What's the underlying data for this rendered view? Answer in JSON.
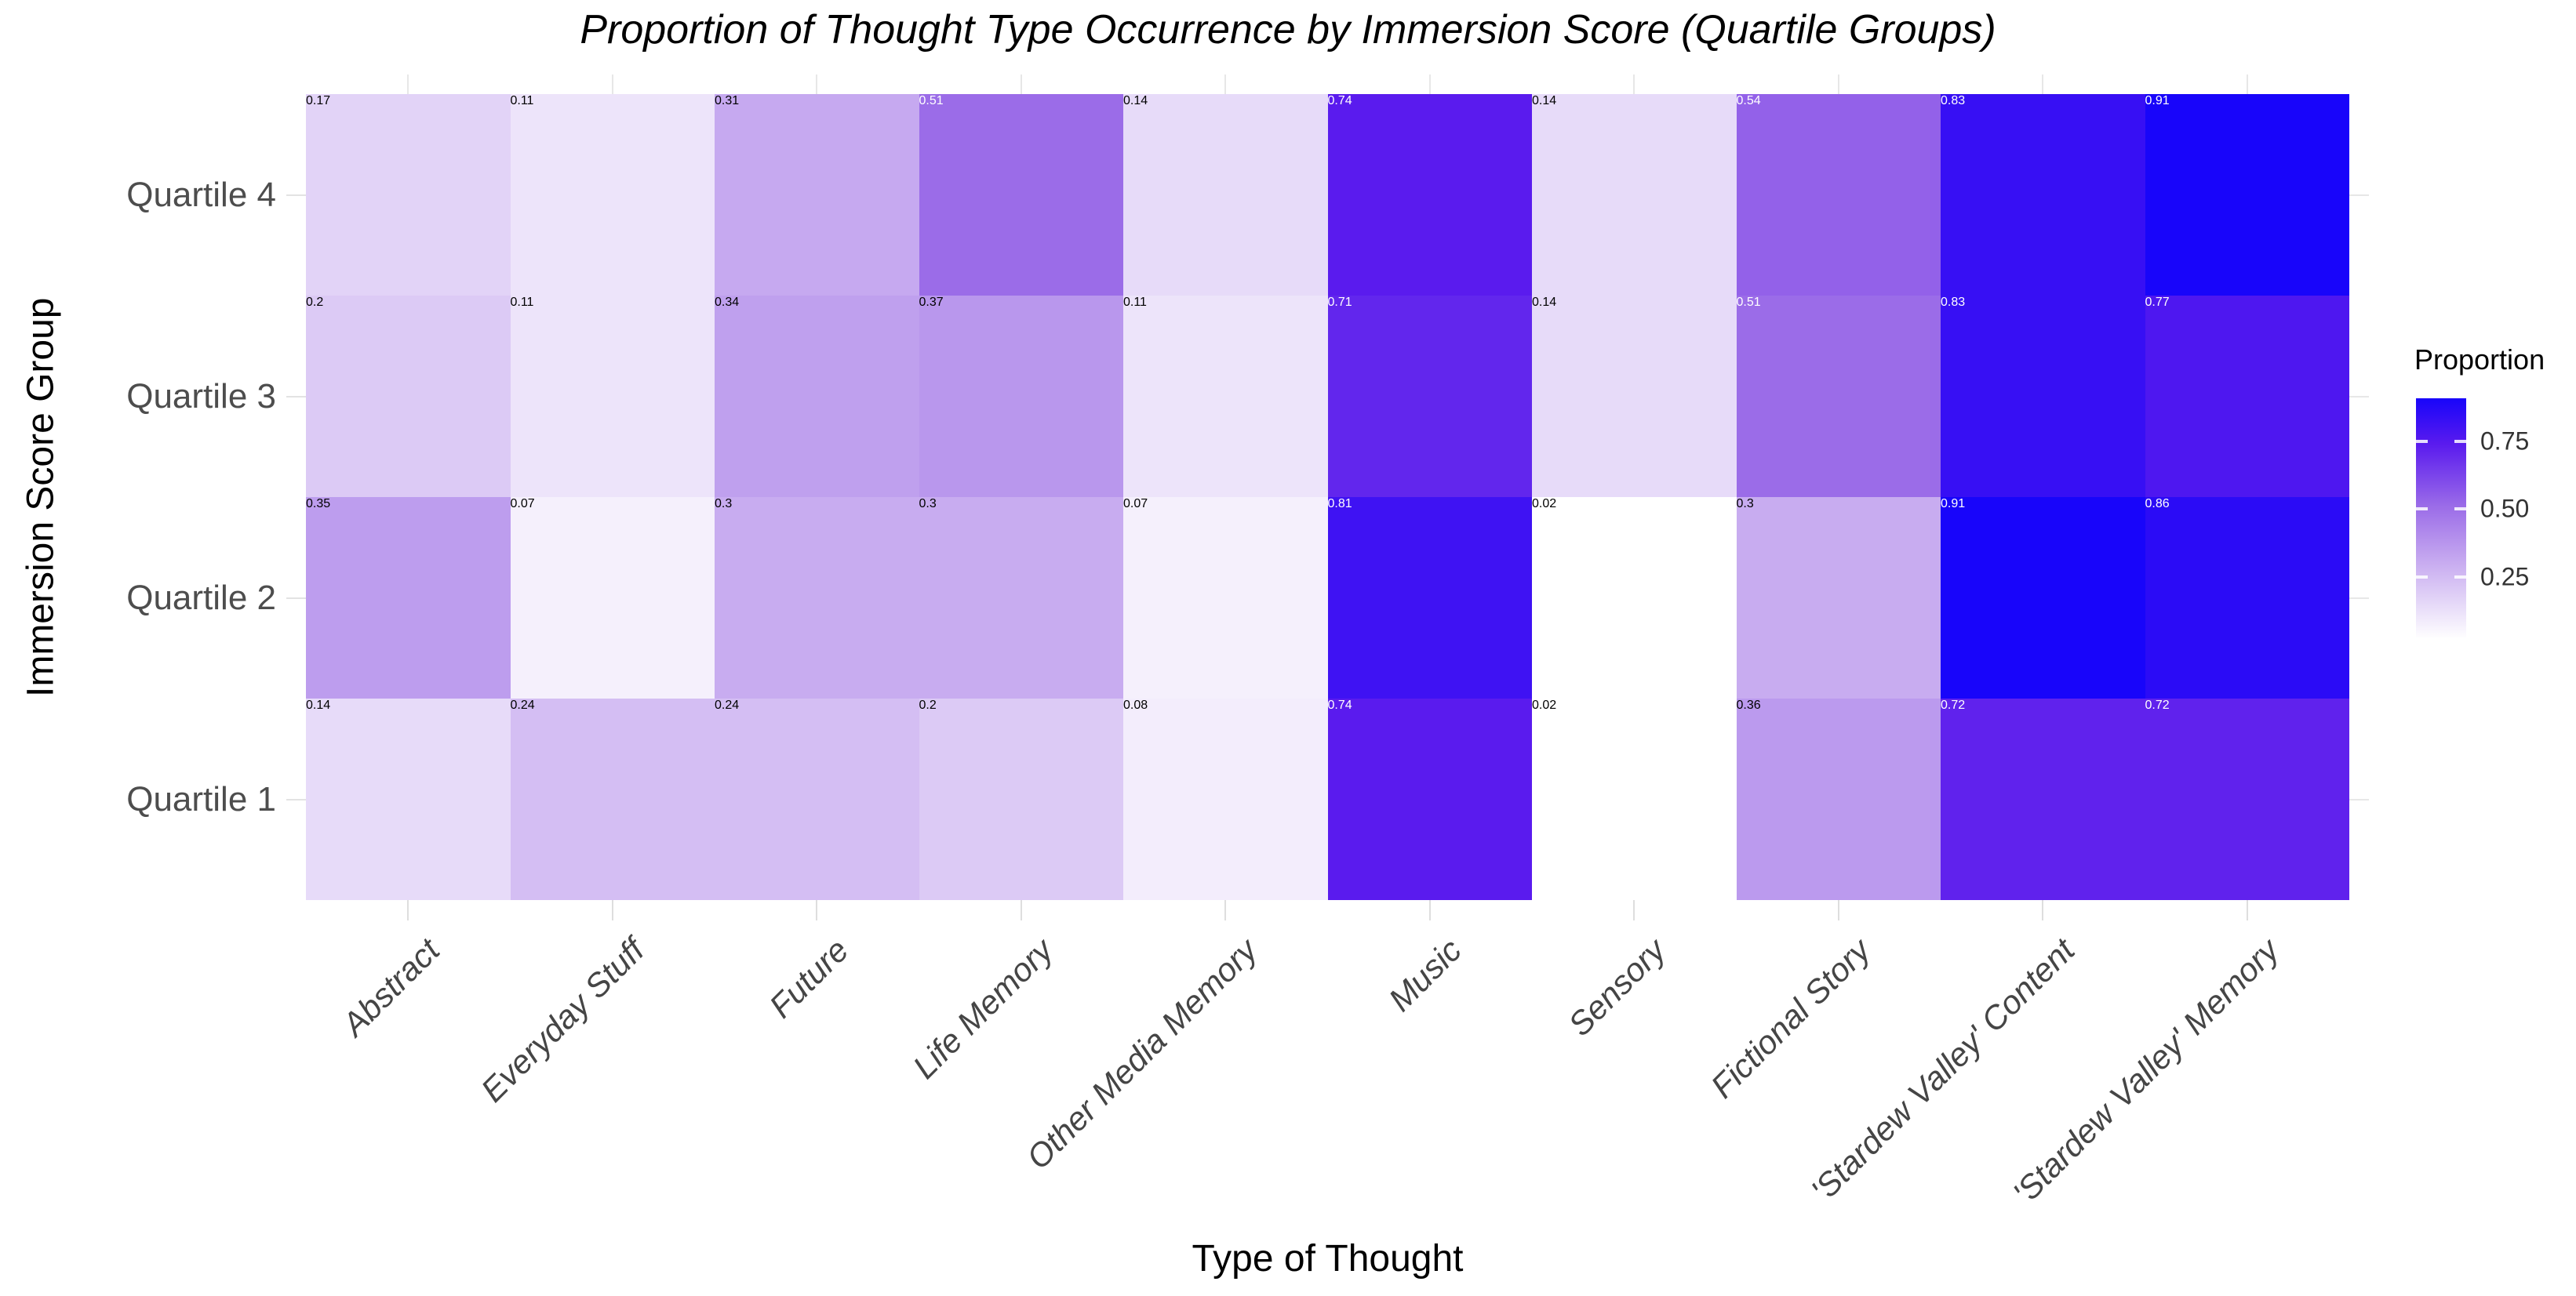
{
  "title": "Proportion of Thought Type Occurrence by Immersion Score (Quartile Groups)",
  "chart_data": {
    "type": "heatmap",
    "title": "Proportion of Thought Type Occurrence by Immersion Score (Quartile Groups)",
    "xlabel": "Type of Thought",
    "ylabel": "Immersion Score Group",
    "categories_x": [
      "Abstract",
      "Everyday Stuff",
      "Future",
      "Life Memory",
      "Other Media Memory",
      "Music",
      "Sensory",
      "Fictional Story",
      "'Stardew Valley' Content",
      "'Stardew Valley' Memory"
    ],
    "categories_y": [
      "Quartile 4",
      "Quartile 3",
      "Quartile 2",
      "Quartile 1"
    ],
    "series": [
      {
        "name": "Quartile 4",
        "values": [
          0.17,
          0.11,
          0.31,
          0.51,
          0.14,
          0.74,
          0.14,
          0.54,
          0.83,
          0.91
        ]
      },
      {
        "name": "Quartile 3",
        "values": [
          0.2,
          0.11,
          0.34,
          0.37,
          0.11,
          0.71,
          0.14,
          0.51,
          0.83,
          0.77
        ]
      },
      {
        "name": "Quartile 2",
        "values": [
          0.35,
          0.07,
          0.3,
          0.3,
          0.07,
          0.81,
          0.02,
          0.3,
          0.91,
          0.86
        ]
      },
      {
        "name": "Quartile 1",
        "values": [
          0.14,
          0.24,
          0.24,
          0.2,
          0.08,
          0.74,
          0.02,
          0.36,
          0.72,
          0.72
        ]
      }
    ],
    "legend": {
      "title": "Proportion",
      "position": "right",
      "ticks": [
        {
          "label": "0.75",
          "value": 0.75
        },
        {
          "label": "0.50",
          "value": 0.5
        },
        {
          "label": "0.25",
          "value": 0.25
        }
      ]
    },
    "scale": {
      "domain": [
        0.02,
        0.91
      ],
      "low_color": "#ffffff",
      "high_color": "#1805fa",
      "color_anchors": [
        {
          "value": 0.02,
          "color": "#ffffff"
        },
        {
          "value": 0.3,
          "color": "#c8acf0"
        },
        {
          "value": 0.51,
          "color": "#9b6ce8"
        },
        {
          "value": 0.74,
          "color": "#5a1bee"
        },
        {
          "value": 0.91,
          "color": "#1805fa"
        }
      ]
    },
    "grid": true
  }
}
